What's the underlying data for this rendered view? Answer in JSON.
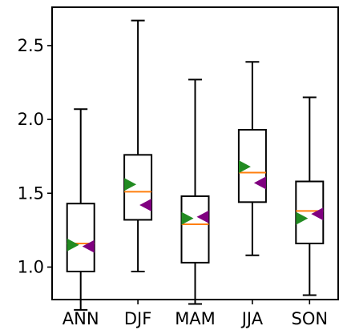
{
  "chart_data": {
    "type": "box",
    "categories": [
      "ANN",
      "DJF",
      "MAM",
      "JJA",
      "SON"
    ],
    "ylim": [
      0.78,
      2.76
    ],
    "yticks": [
      1.0,
      1.5,
      2.0,
      2.5
    ],
    "ytick_labels": [
      "1.0",
      "1.5",
      "2.0",
      "2.5"
    ],
    "grid": false,
    "legend": "none",
    "boxes": [
      {
        "category": "ANN",
        "whisker_low": 0.71,
        "q1": 0.97,
        "median": 1.16,
        "q3": 1.43,
        "whisker_high": 2.07
      },
      {
        "category": "DJF",
        "whisker_low": 0.97,
        "q1": 1.32,
        "median": 1.51,
        "q3": 1.76,
        "whisker_high": 2.67
      },
      {
        "category": "MAM",
        "whisker_low": 0.75,
        "q1": 1.03,
        "median": 1.29,
        "q3": 1.48,
        "whisker_high": 2.27
      },
      {
        "category": "JJA",
        "whisker_low": 1.08,
        "q1": 1.44,
        "median": 1.64,
        "q3": 1.93,
        "whisker_high": 2.39
      },
      {
        "category": "SON",
        "whisker_low": 0.81,
        "q1": 1.16,
        "median": 1.38,
        "q3": 1.58,
        "whisker_high": 2.15
      }
    ],
    "markers": [
      {
        "category": "ANN",
        "green": 1.15,
        "purple": 1.14
      },
      {
        "category": "DJF",
        "green": 1.56,
        "purple": 1.42
      },
      {
        "category": "MAM",
        "green": 1.33,
        "purple": 1.34
      },
      {
        "category": "JJA",
        "green": 1.68,
        "purple": 1.57
      },
      {
        "category": "SON",
        "green": 1.33,
        "purple": 1.36
      }
    ],
    "colors": {
      "box_edge": "#000000",
      "median": "#ff7f0e",
      "green_marker": "#228b22",
      "purple_marker": "#800080"
    }
  }
}
